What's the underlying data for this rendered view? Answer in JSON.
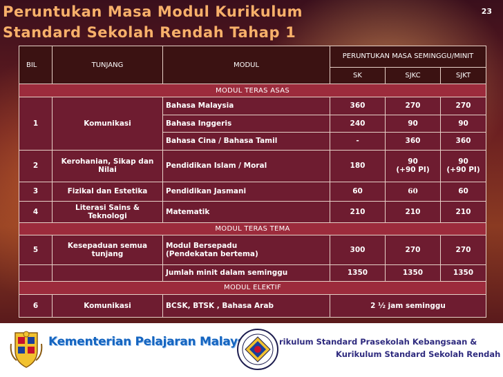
{
  "slide": {
    "title_line1": "Peruntukan Masa Modul Kurikulum",
    "title_line2": "Standard Sekolah Rendah Tahap 1",
    "page_number": "23"
  },
  "table": {
    "header": {
      "bil": "BIL",
      "tunjang": "TUNJANG",
      "modul": "MODUL",
      "peruntukan": "PERUNTUKAN MASA SEMINGGU/MINIT",
      "sk": "SK",
      "sjkc": "SJKC",
      "sjkt": "SJKT"
    },
    "sections": {
      "teras_asas": "MODUL TERAS ASAS",
      "teras_tema": "MODUL TERAS TEMA",
      "elektif": "MODUL ELEKTIF"
    },
    "rows": {
      "r1": {
        "bil": "1",
        "tunjang": "Komunikasi"
      },
      "r1a": {
        "modul": "Bahasa Malaysia",
        "sk": "360",
        "sjkc": "270",
        "sjkt": "270"
      },
      "r1b": {
        "modul": "Bahasa Inggeris",
        "sk": "240",
        "sjkc": "90",
        "sjkt": "90"
      },
      "r1c": {
        "modul": "Bahasa Cina / Bahasa Tamil",
        "sk": "-",
        "sjkc": "360",
        "sjkt": "360"
      },
      "r2": {
        "bil": "2",
        "tunjang": "Kerohanian, Sikap dan Nilai",
        "modul": "Pendidikan Islam /  Moral",
        "sk": "180",
        "sjkc_1": "90",
        "sjkc_2": "(+90 PI)",
        "sjkt_1": "90",
        "sjkt_2": "(+90 PI)"
      },
      "r3": {
        "bil": "3",
        "tunjang": "Fizikal dan Estetika",
        "modul": "Pendidikan Jasmani",
        "sk": "60",
        "sjkc": "60",
        "sjkt": "60"
      },
      "r4": {
        "bil": "4",
        "tunjang": "Literasi Sains & Teknologi",
        "modul": "Matematik",
        "sk": "210",
        "sjkc": "210",
        "sjkt": "210"
      },
      "r5": {
        "bil": "5",
        "tunjang": "Kesepaduan semua tunjang",
        "modul_1": "Modul Bersepadu",
        "modul_2": "(Pendekatan bertema)",
        "sk": "300",
        "sjkc": "270",
        "sjkt": "270"
      },
      "total": {
        "modul": "Jumlah minit dalam seminggu",
        "sk": "1350",
        "sjkc": "1350",
        "sjkt": "1350"
      },
      "r6": {
        "bil": "6",
        "tunjang": "Komunikasi",
        "modul": "BCSK, BTSK , Bahasa Arab",
        "masa": "2 ½  jam seminggu"
      }
    }
  },
  "footer": {
    "ministry": "Kementerian Pelajaran Malaysia",
    "kurikulum_line1": "rikulum Standard Prasekolah Kebangsaan &",
    "kurikulum_line2": "Kurikulum Standard Sekolah Rendah",
    "crest_icon": "malaysia-coat-of-arms-icon",
    "seal_icon": "kurikulum-seal-icon"
  },
  "colors": {
    "title": "#f7b06a",
    "header_bg": "#3b1212",
    "section_bg": "#9c2b3c",
    "body_bg": "#6e1c30",
    "ministry_text": "#1565c0",
    "kurikulum_text": "#2e2a7e"
  }
}
